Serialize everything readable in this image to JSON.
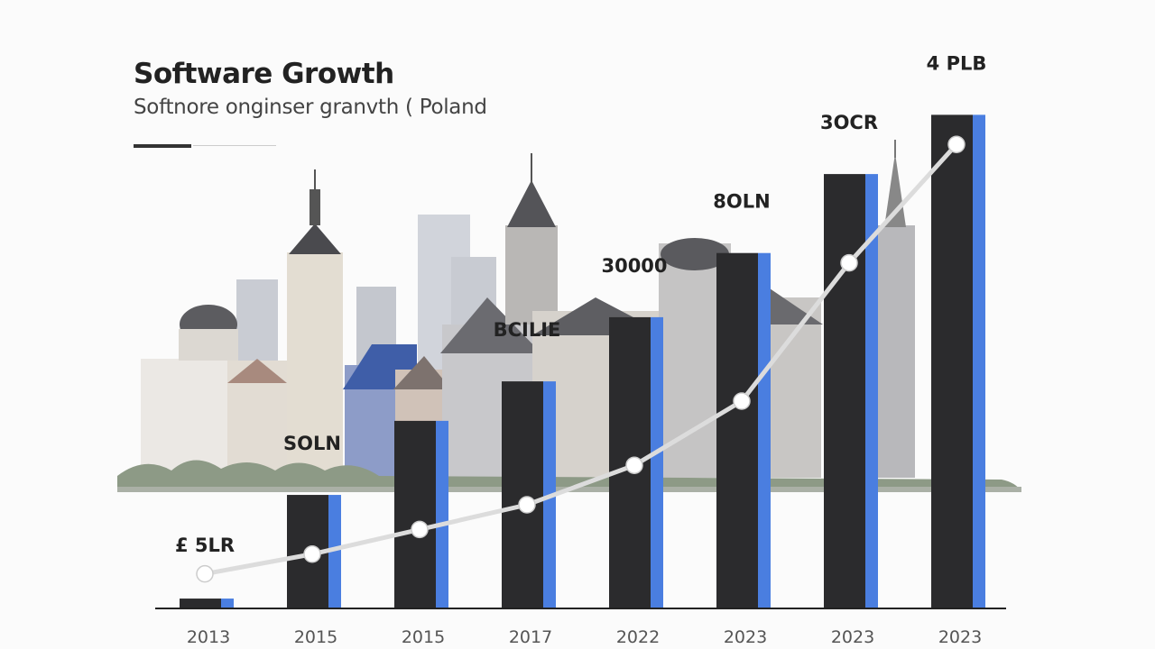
{
  "chart_data": {
    "type": "bar",
    "title": "Software Growth",
    "subtitle": "Softnore onginser granvth ( Poland",
    "categories": [
      "2013",
      "2015",
      "2015",
      "2017",
      "2022",
      "2023",
      "2023",
      "2023"
    ],
    "series": [
      {
        "kind": "bar",
        "values": [
          2,
          23,
          38,
          46,
          59,
          72,
          88,
          100
        ]
      },
      {
        "kind": "line",
        "values": [
          7,
          11,
          16,
          21,
          29,
          42,
          70,
          94
        ]
      }
    ],
    "data_labels": [
      "£ 5LR",
      "SOLN",
      "",
      "BCILIE",
      "30000",
      "8OLN",
      "3OCR",
      "4 PLB"
    ],
    "ylim": [
      0,
      105
    ],
    "grid": false,
    "legend": "none",
    "colors": {
      "bar": "#2b2b2d",
      "bar_accent": "#4a7ee0",
      "line": "#dcdcdc",
      "marker": "#ffffff",
      "text": "#222222"
    }
  }
}
